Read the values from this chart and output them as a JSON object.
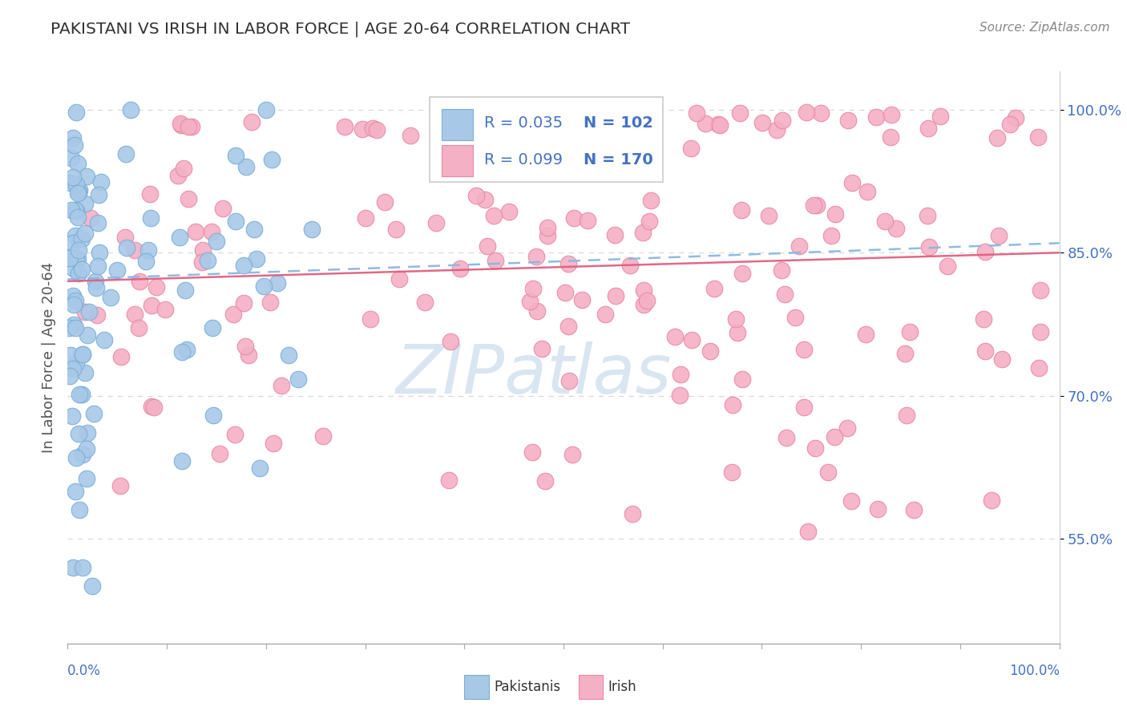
{
  "title": "PAKISTANI VS IRISH IN LABOR FORCE | AGE 20-64 CORRELATION CHART",
  "source": "Source: ZipAtlas.com",
  "ylabel": "In Labor Force | Age 20-64",
  "legend_r1": "R = 0.035",
  "legend_n1": "N = 102",
  "legend_r2": "R = 0.099",
  "legend_n2": "N = 170",
  "blue_color": "#a8c8e8",
  "blue_edge": "#7aaed6",
  "pink_color": "#f4b0c4",
  "pink_edge": "#e888a8",
  "trend_blue_color": "#88b8e0",
  "trend_pink_color": "#e06080",
  "grid_color": "#d8d8d8",
  "watermark_color": "#c0d4e8",
  "tick_label_color": "#4472c4",
  "ylabel_color": "#555555",
  "title_color": "#333333",
  "source_color": "#888888",
  "xlim": [
    0.0,
    1.0
  ],
  "ylim": [
    0.44,
    1.04
  ],
  "y_ticks": [
    0.55,
    0.7,
    0.85,
    1.0
  ],
  "y_tick_labels": [
    "55.0%",
    "70.0%",
    "85.0%",
    "100.0%"
  ],
  "pak_trend_start": 0.822,
  "pak_trend_end": 0.86,
  "irish_trend_start": 0.82,
  "irish_trend_end": 0.85
}
